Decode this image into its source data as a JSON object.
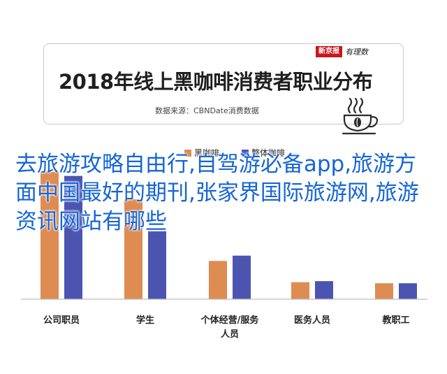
{
  "header": {
    "title": "2018年线上黑咖啡消费者职业分布",
    "source": "数据来源：CBNDate消费数据",
    "brand": {
      "red_box": "新京报",
      "script": "有理数"
    }
  },
  "overlay": {
    "text": "去旅游攻略自由行,自驾游必备app,旅游方面中国最好的期刊,张家界国际旅游网,旅游资讯网站有哪些"
  },
  "colors": {
    "series1": "#de8c52",
    "series2": "#4b55b0",
    "axis": "#bdbdbd",
    "overlay_text": "#1565d8"
  },
  "icons": [
    "coffee-cup-icon"
  ],
  "chart_data": {
    "type": "bar",
    "title": "2018年线上黑咖啡消费者职业分布",
    "subtitle": "数据来源：CBNDate消费数据",
    "categories": [
      "公司职员",
      "学生",
      "个体经营/服务人员",
      "医务人员",
      "教职工"
    ],
    "series": [
      {
        "name": "黑咖啡",
        "values": [
          60,
          47,
          18,
          8,
          7.5
        ]
      },
      {
        "name": "整体咖啡",
        "values": [
          58,
          32,
          20.5,
          8.5,
          7.5
        ]
      }
    ],
    "ylim": [
      0,
      75
    ],
    "grid": false,
    "legend_position": "top-center"
  }
}
